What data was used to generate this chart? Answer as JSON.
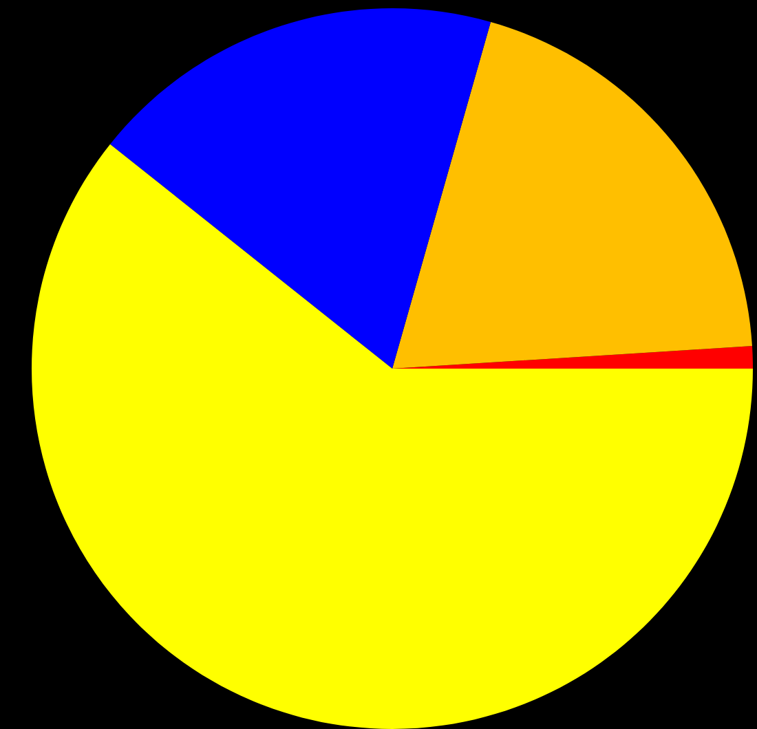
{
  "chart_data": {
    "type": "pie",
    "categories": [
      null,
      null,
      null,
      null
    ],
    "values": [
      1.0,
      19.6,
      18.7,
      60.7
    ],
    "colors": [
      "#ff0000",
      "#ffbf00",
      "#0000ff",
      "#ffff00"
    ]
  }
}
